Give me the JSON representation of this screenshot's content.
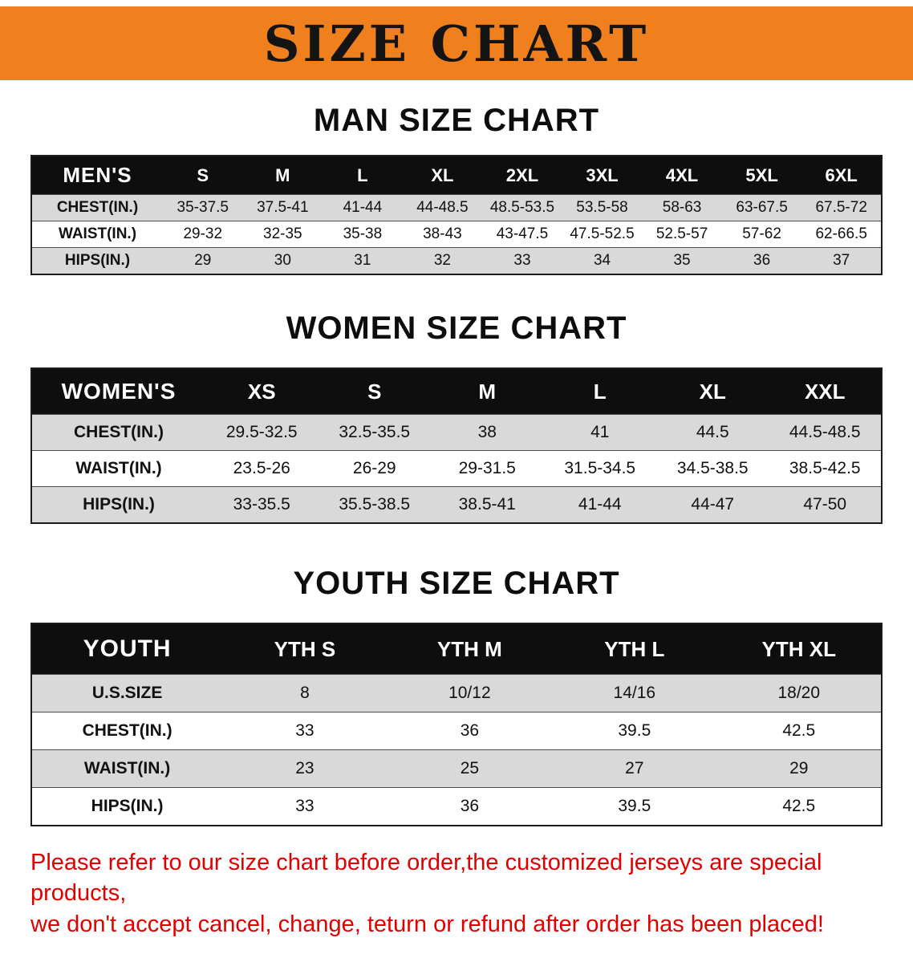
{
  "banner": {
    "title": "SIZE CHART",
    "bg_color": "#F0801E"
  },
  "sections": {
    "men": {
      "heading": "MAN SIZE CHART"
    },
    "women": {
      "heading": "WOMEN SIZE CHART"
    },
    "youth": {
      "heading": "YOUTH SIZE CHART"
    }
  },
  "tables": {
    "men": {
      "header_label": "MEN'S",
      "columns": [
        "S",
        "M",
        "L",
        "XL",
        "2XL",
        "3XL",
        "4XL",
        "5XL",
        "6XL"
      ],
      "rows": [
        {
          "label": "CHEST(IN.)",
          "values": [
            "35-37.5",
            "37.5-41",
            "41-44",
            "44-48.5",
            "48.5-53.5",
            "53.5-58",
            "58-63",
            "63-67.5",
            "67.5-72"
          ]
        },
        {
          "label": "WAIST(IN.)",
          "values": [
            "29-32",
            "32-35",
            "35-38",
            "38-43",
            "43-47.5",
            "47.5-52.5",
            "52.5-57",
            "57-62",
            "62-66.5"
          ]
        },
        {
          "label": "HIPS(IN.)",
          "values": [
            "29",
            "30",
            "31",
            "32",
            "33",
            "34",
            "35",
            "36",
            "37"
          ]
        }
      ]
    },
    "women": {
      "header_label": "WOMEN'S",
      "columns": [
        "XS",
        "S",
        "M",
        "L",
        "XL",
        "XXL"
      ],
      "rows": [
        {
          "label": "CHEST(IN.)",
          "values": [
            "29.5-32.5",
            "32.5-35.5",
            "38",
            "41",
            "44.5",
            "44.5-48.5"
          ]
        },
        {
          "label": "WAIST(IN.)",
          "values": [
            "23.5-26",
            "26-29",
            "29-31.5",
            "31.5-34.5",
            "34.5-38.5",
            "38.5-42.5"
          ]
        },
        {
          "label": "HIPS(IN.)",
          "values": [
            "33-35.5",
            "35.5-38.5",
            "38.5-41",
            "41-44",
            "44-47",
            "47-50"
          ]
        }
      ]
    },
    "youth": {
      "header_label": "YOUTH",
      "columns": [
        "YTH S",
        "YTH M",
        "YTH L",
        "YTH XL"
      ],
      "rows": [
        {
          "label": "U.S.SIZE",
          "values": [
            "8",
            "10/12",
            "14/16",
            "18/20"
          ]
        },
        {
          "label": "CHEST(IN.)",
          "values": [
            "33",
            "36",
            "39.5",
            "42.5"
          ]
        },
        {
          "label": "WAIST(IN.)",
          "values": [
            "23",
            "25",
            "27",
            "29"
          ]
        },
        {
          "label": "HIPS(IN.)",
          "values": [
            "33",
            "36",
            "39.5",
            "42.5"
          ]
        }
      ]
    }
  },
  "footer": {
    "line1": "Please refer to our size chart before order,the customized jerseys are special products,",
    "line2": "we don't accept cancel, change, teturn or refund after order has been placed!",
    "text_color": "#e00000"
  }
}
